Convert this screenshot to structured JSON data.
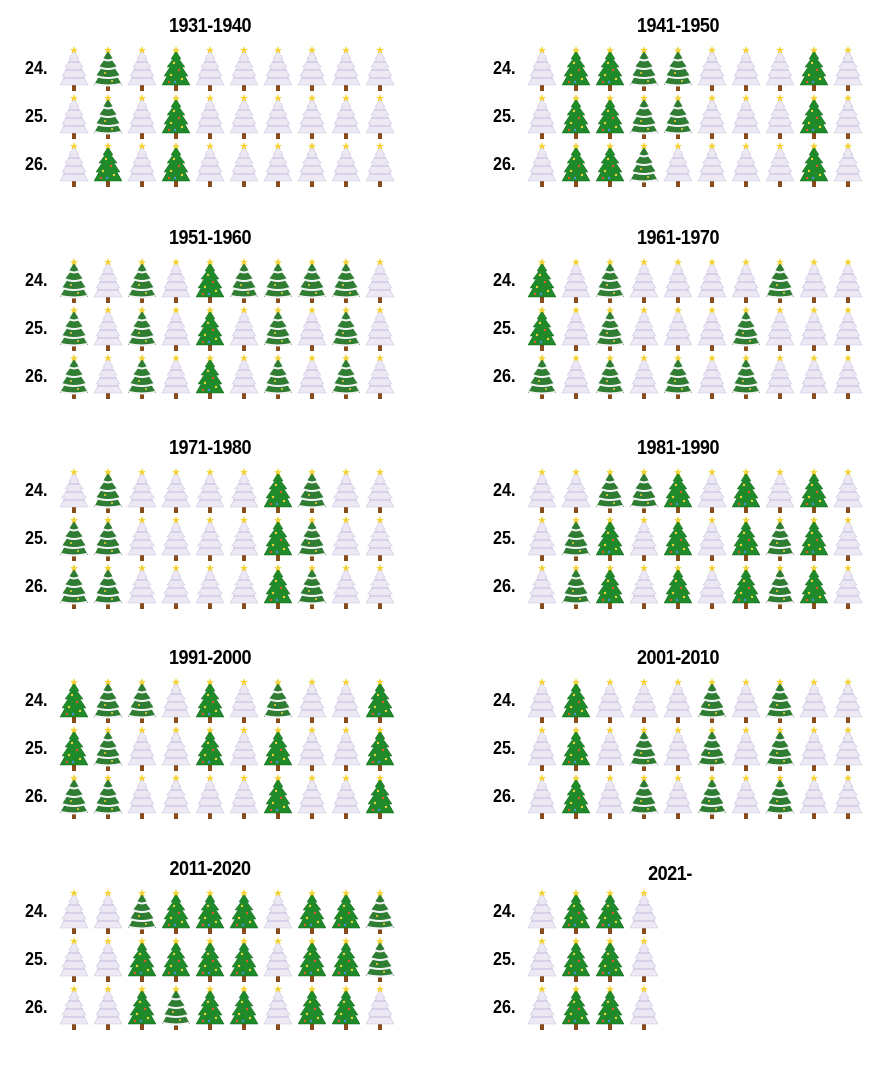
{
  "chart_data": {
    "type": "pictogram",
    "legend_colors": {
      "white": "#ece8f4",
      "snow": "#2f7d32",
      "green": "#1f8a2a"
    },
    "panels": [
      {
        "title": "1931-1940",
        "rows": [
          {
            "label": "24.",
            "trees": [
              "white",
              "snow",
              "white",
              "green",
              "white",
              "white",
              "white",
              "white",
              "white",
              "white"
            ]
          },
          {
            "label": "25.",
            "trees": [
              "white",
              "snow",
              "white",
              "green",
              "white",
              "white",
              "white",
              "white",
              "white",
              "white"
            ]
          },
          {
            "label": "26.",
            "trees": [
              "white",
              "green",
              "white",
              "green",
              "white",
              "white",
              "white",
              "white",
              "white",
              "white"
            ]
          }
        ]
      },
      {
        "title": "1941-1950",
        "rows": [
          {
            "label": "24.",
            "trees": [
              "white",
              "green",
              "green",
              "snow",
              "snow",
              "white",
              "white",
              "white",
              "green",
              "white"
            ]
          },
          {
            "label": "25.",
            "trees": [
              "white",
              "green",
              "green",
              "snow",
              "snow",
              "white",
              "white",
              "white",
              "green",
              "white"
            ]
          },
          {
            "label": "26.",
            "trees": [
              "white",
              "green",
              "green",
              "snow",
              "white",
              "white",
              "white",
              "white",
              "green",
              "white"
            ]
          }
        ]
      },
      {
        "title": "1951-1960",
        "rows": [
          {
            "label": "24.",
            "trees": [
              "snow",
              "white",
              "snow",
              "white",
              "green",
              "snow",
              "snow",
              "snow",
              "snow",
              "white"
            ]
          },
          {
            "label": "25.",
            "trees": [
              "snow",
              "white",
              "snow",
              "white",
              "green",
              "white",
              "snow",
              "white",
              "snow",
              "white"
            ]
          },
          {
            "label": "26.",
            "trees": [
              "snow",
              "white",
              "snow",
              "white",
              "green",
              "white",
              "snow",
              "white",
              "snow",
              "white"
            ]
          }
        ]
      },
      {
        "title": "1961-1970",
        "rows": [
          {
            "label": "24.",
            "trees": [
              "green",
              "white",
              "snow",
              "white",
              "white",
              "white",
              "white",
              "snow",
              "white",
              "white"
            ]
          },
          {
            "label": "25.",
            "trees": [
              "green",
              "white",
              "snow",
              "white",
              "white",
              "white",
              "snow",
              "white",
              "white",
              "white"
            ]
          },
          {
            "label": "26.",
            "trees": [
              "snow",
              "white",
              "snow",
              "white",
              "snow",
              "white",
              "snow",
              "white",
              "white",
              "white"
            ]
          }
        ]
      },
      {
        "title": "1971-1980",
        "rows": [
          {
            "label": "24.",
            "trees": [
              "white",
              "snow",
              "white",
              "white",
              "white",
              "white",
              "green",
              "snow",
              "white",
              "white"
            ]
          },
          {
            "label": "25.",
            "trees": [
              "snow",
              "snow",
              "white",
              "white",
              "white",
              "white",
              "green",
              "snow",
              "white",
              "white"
            ]
          },
          {
            "label": "26.",
            "trees": [
              "snow",
              "snow",
              "white",
              "white",
              "white",
              "white",
              "green",
              "snow",
              "white",
              "white"
            ]
          }
        ]
      },
      {
        "title": "1981-1990",
        "rows": [
          {
            "label": "24.",
            "trees": [
              "white",
              "white",
              "snow",
              "snow",
              "green",
              "white",
              "green",
              "white",
              "green",
              "white"
            ]
          },
          {
            "label": "25.",
            "trees": [
              "white",
              "snow",
              "green",
              "white",
              "green",
              "white",
              "green",
              "snow",
              "green",
              "white"
            ]
          },
          {
            "label": "26.",
            "trees": [
              "white",
              "snow",
              "green",
              "white",
              "green",
              "white",
              "green",
              "snow",
              "green",
              "white"
            ]
          }
        ]
      },
      {
        "title": "1991-2000",
        "rows": [
          {
            "label": "24.",
            "trees": [
              "green",
              "snow",
              "snow",
              "white",
              "green",
              "white",
              "snow",
              "white",
              "white",
              "green"
            ]
          },
          {
            "label": "25.",
            "trees": [
              "green",
              "snow",
              "white",
              "white",
              "green",
              "white",
              "green",
              "white",
              "white",
              "green"
            ]
          },
          {
            "label": "26.",
            "trees": [
              "snow",
              "snow",
              "white",
              "white",
              "white",
              "white",
              "green",
              "white",
              "white",
              "green"
            ]
          }
        ]
      },
      {
        "title": "2001-2010",
        "rows": [
          {
            "label": "24.",
            "trees": [
              "white",
              "green",
              "white",
              "white",
              "white",
              "snow",
              "white",
              "snow",
              "white",
              "white"
            ]
          },
          {
            "label": "25.",
            "trees": [
              "white",
              "green",
              "white",
              "snow",
              "white",
              "snow",
              "white",
              "snow",
              "white",
              "white"
            ]
          },
          {
            "label": "26.",
            "trees": [
              "white",
              "green",
              "white",
              "snow",
              "white",
              "snow",
              "white",
              "snow",
              "white",
              "white"
            ]
          }
        ]
      },
      {
        "title": "2011-2020",
        "rows": [
          {
            "label": "24.",
            "trees": [
              "white",
              "white",
              "snow",
              "green",
              "green",
              "green",
              "white",
              "green",
              "green",
              "snow"
            ]
          },
          {
            "label": "25.",
            "trees": [
              "white",
              "white",
              "green",
              "green",
              "green",
              "green",
              "white",
              "green",
              "green",
              "snow"
            ]
          },
          {
            "label": "26.",
            "trees": [
              "white",
              "white",
              "green",
              "snow",
              "green",
              "green",
              "white",
              "green",
              "green",
              "white"
            ]
          }
        ]
      },
      {
        "title": "2021-",
        "rows": [
          {
            "label": "24.",
            "trees": [
              "white",
              "green",
              "green",
              "white"
            ]
          },
          {
            "label": "25.",
            "trees": [
              "white",
              "green",
              "green",
              "white"
            ]
          },
          {
            "label": "26.",
            "trees": [
              "white",
              "green",
              "green",
              "white"
            ]
          }
        ]
      }
    ]
  }
}
